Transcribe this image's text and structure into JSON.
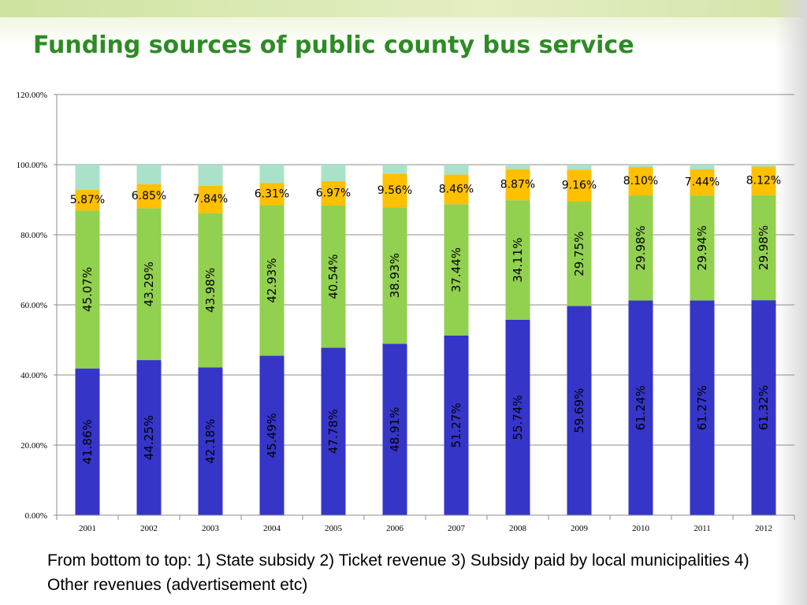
{
  "header": {
    "title": "Funding sources of public county bus service"
  },
  "caption": "From bottom to top: 1) State subsidy 2) Ticket revenue 3) Subsidy paid by local municipalities 4) Other revenues (advertisement etc)",
  "colors": {
    "state_subsidy": "#3535c8",
    "ticket_revenue": "#92d050",
    "municipal_subsidy": "#ffc000",
    "other_revenues": "#a9e2c9",
    "title": "#2e8b26"
  },
  "chart_data": {
    "type": "bar",
    "stacked": true,
    "title": "",
    "xlabel": "",
    "ylabel": "",
    "ylim": [
      0,
      120
    ],
    "yticks": [
      "0.00%",
      "20.00%",
      "40.00%",
      "60.00%",
      "80.00%",
      "100.00%",
      "120.00%"
    ],
    "grid": true,
    "categories": [
      "2001",
      "2002",
      "2003",
      "2004",
      "2005",
      "2006",
      "2007",
      "2008",
      "2009",
      "2010",
      "2011",
      "2012"
    ],
    "series": [
      {
        "values": [
          41.86,
          44.25,
          42.18,
          45.49,
          47.78,
          48.91,
          51.27,
          55.74,
          59.69,
          61.24,
          61.27,
          61.32
        ],
        "labels": [
          "41.86%",
          "44.25%",
          "42.18%",
          "45.49%",
          "47.78%",
          "48.91%",
          "51.27%",
          "55.74%",
          "59.69%",
          "61.24%",
          "61.27%",
          "61.32%"
        ]
      },
      {
        "values": [
          45.07,
          43.29,
          43.98,
          42.93,
          40.54,
          38.93,
          37.44,
          34.11,
          29.75,
          29.98,
          29.94,
          29.98
        ],
        "labels": [
          "45.07%",
          "43.29%",
          "43.98%",
          "42.93%",
          "40.54%",
          "38.93%",
          "37.44%",
          "34.11%",
          "29.75%",
          "29.98%",
          "29.94%",
          "29.98%"
        ]
      },
      {
        "values": [
          5.87,
          6.85,
          7.84,
          6.31,
          6.97,
          9.56,
          8.46,
          8.87,
          9.16,
          8.1,
          7.44,
          8.12
        ],
        "labels": [
          "5.87%",
          "6.85%",
          "7.84%",
          "6.31%",
          "6.97%",
          "9.56%",
          "8.46%",
          "8.87%",
          "9.16%",
          "8.10%",
          "7.44%",
          "8.12%"
        ]
      },
      {
        "values": [
          7.2,
          5.61,
          6.0,
          5.27,
          4.71,
          2.6,
          2.83,
          1.28,
          1.4,
          0.68,
          1.35,
          0.58
        ]
      }
    ]
  }
}
